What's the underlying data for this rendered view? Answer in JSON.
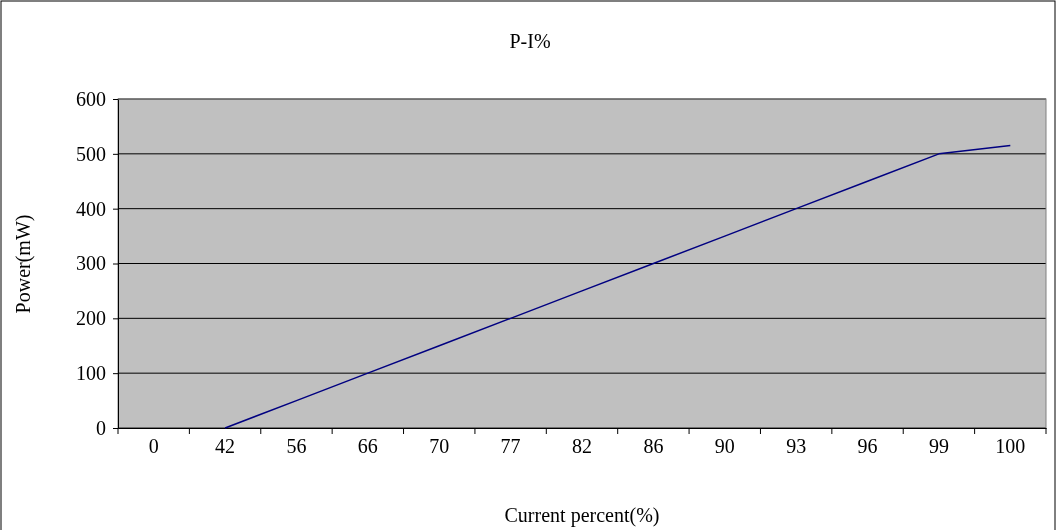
{
  "chart_data": {
    "type": "line",
    "title": "P-I%",
    "xlabel": "Current percent(%)",
    "ylabel": "Power(mW)",
    "categories": [
      "0",
      "42",
      "56",
      "66",
      "70",
      "77",
      "82",
      "86",
      "90",
      "93",
      "96",
      "99",
      "100"
    ],
    "series": [
      {
        "color": "#000080",
        "values": [
          null,
          0,
          50,
          100,
          150,
          200,
          250,
          300,
          350,
          400,
          450,
          500,
          515
        ]
      }
    ],
    "ylim": [
      0,
      600
    ],
    "yticks": [
      0,
      100,
      200,
      300,
      400,
      500,
      600
    ],
    "grid": "y",
    "marker": "none",
    "line_style": "solid"
  }
}
